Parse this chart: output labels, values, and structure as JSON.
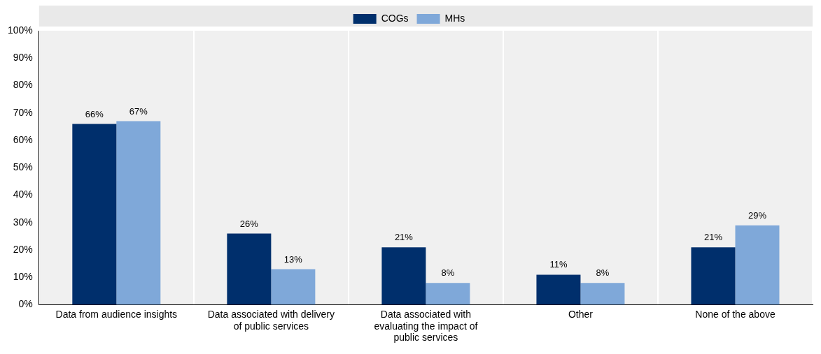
{
  "chart_data": {
    "type": "bar",
    "categories": [
      "Data from audience insights",
      "Data associated with delivery of public services",
      "Data associated with evaluating the impact of public services",
      "Other",
      "None of the above"
    ],
    "series": [
      {
        "name": "COGs",
        "color": "#002f6c",
        "values": [
          66,
          26,
          21,
          11,
          21
        ],
        "value_labels": [
          "66%",
          "26%",
          "21%",
          "11%",
          "21%"
        ]
      },
      {
        "name": "MHs",
        "color": "#7fa8d9",
        "values": [
          67,
          13,
          8,
          8,
          29
        ],
        "value_labels": [
          "67%",
          "13%",
          "8%",
          "8%",
          "29%"
        ]
      }
    ],
    "ylim": [
      0,
      100
    ],
    "yticks": [
      {
        "value": 0,
        "label": "0%"
      },
      {
        "value": 10,
        "label": "10%"
      },
      {
        "value": 20,
        "label": "20%"
      },
      {
        "value": 30,
        "label": "30%"
      },
      {
        "value": 40,
        "label": "40%"
      },
      {
        "value": 50,
        "label": "50%"
      },
      {
        "value": 60,
        "label": "60%"
      },
      {
        "value": 70,
        "label": "70%"
      },
      {
        "value": 80,
        "label": "80%"
      },
      {
        "value": 90,
        "label": "90%"
      },
      {
        "value": 100,
        "label": "100%"
      }
    ],
    "grid": "x",
    "legend": "top"
  }
}
